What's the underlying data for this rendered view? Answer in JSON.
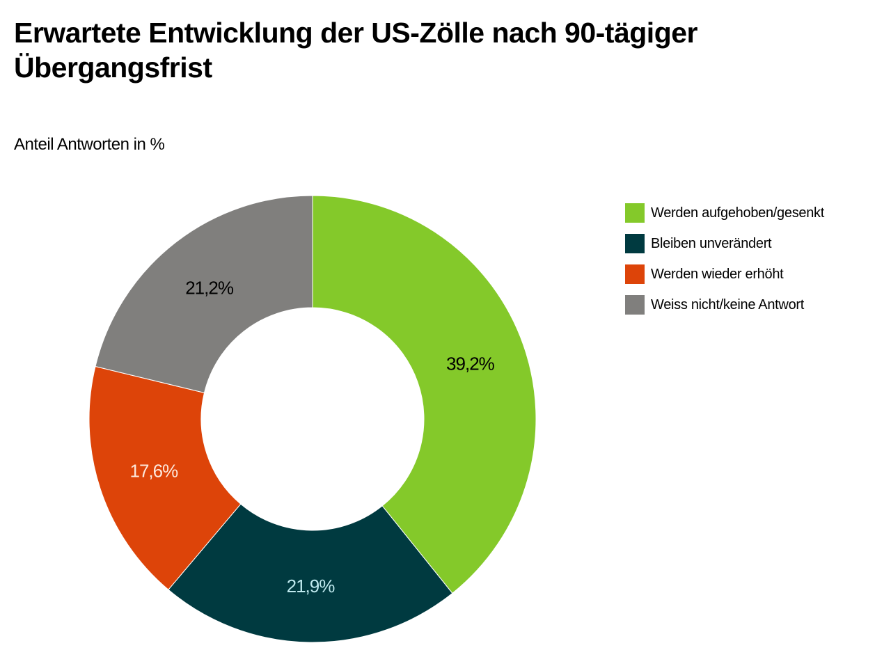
{
  "chart_data": {
    "type": "pie",
    "variant": "donut",
    "title": "Erwartete Entwicklung der US-Zölle nach 90-tägiger Übergangsfrist",
    "subtitle": "Anteil Antworten in %",
    "legend_position": "right",
    "slices": [
      {
        "label": "Werden aufgehoben/gesenkt",
        "value": 39.2,
        "display": "39,2%",
        "color": "#84c92a",
        "text_color": "#000000"
      },
      {
        "label": "Bleiben unverändert",
        "value": 21.9,
        "display": "21,9%",
        "color": "#003a40",
        "text_color": "#bfe9ee"
      },
      {
        "label": "Werden wieder erhöht",
        "value": 17.6,
        "display": "17,6%",
        "color": "#dd4409",
        "text_color": "#fde8dc"
      },
      {
        "label": "Weiss nicht/keine Antwort",
        "value": 21.2,
        "display": "21,2%",
        "color": "#807f7d",
        "text_color": "#000000"
      }
    ]
  }
}
